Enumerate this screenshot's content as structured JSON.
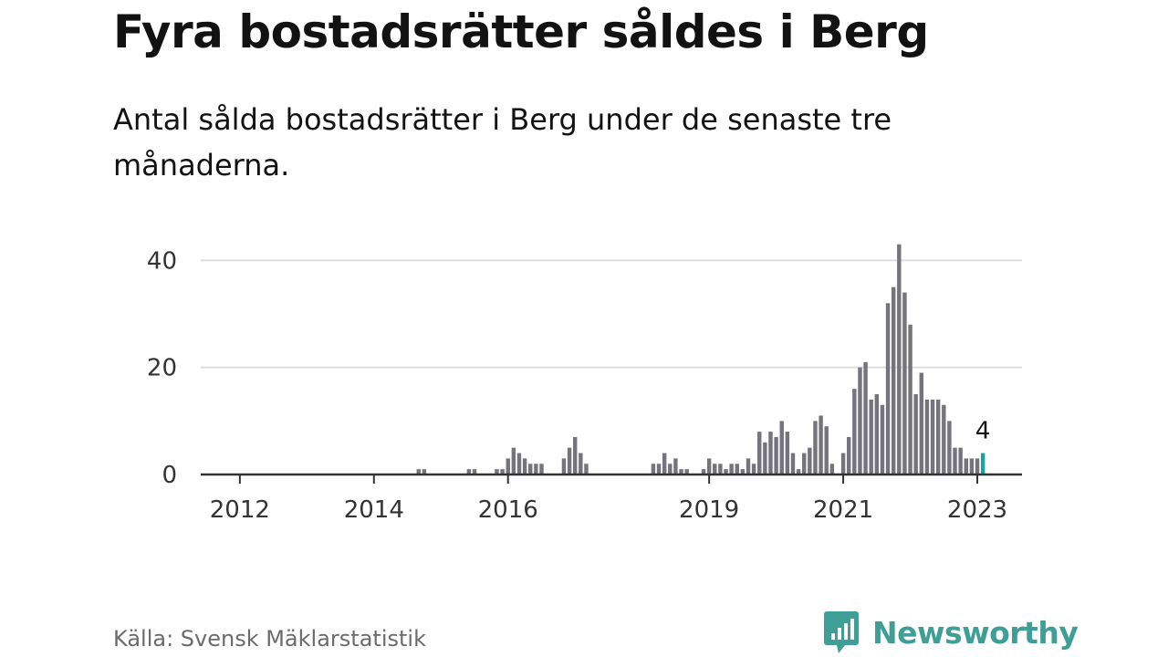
{
  "colors": {
    "bar": "#75737c",
    "highlight": "#19a3a1",
    "grid": "#dddddd",
    "axis": "#333333",
    "brand": "#3f9e96"
  },
  "source": "Källa: Svensk Mäklarstatistik",
  "brand": {
    "name": "Newsworthy"
  },
  "chart_data": {
    "type": "bar",
    "title": "Fyra bostadsrätter såldes i Berg",
    "subtitle": "Antal sålda bostadsrätter i Berg under de senaste tre månaderna.",
    "xlabel": "",
    "ylabel": "",
    "ylim": [
      0,
      45
    ],
    "xlim": [
      "2011-06",
      "2023-09"
    ],
    "yticks": [
      0,
      20,
      40
    ],
    "xticks": [
      {
        "date": "2012-01",
        "label": "2012"
      },
      {
        "date": "2014-01",
        "label": "2014"
      },
      {
        "date": "2016-01",
        "label": "2016"
      },
      {
        "date": "2019-01",
        "label": "2019"
      },
      {
        "date": "2021-01",
        "label": "2021"
      },
      {
        "date": "2023-01",
        "label": "2023"
      }
    ],
    "grid": true,
    "legend": "none",
    "highlight": {
      "date": "2023-02",
      "value": 4,
      "label": "4"
    },
    "points": [
      [
        "2014-09",
        1
      ],
      [
        "2014-10",
        1
      ],
      [
        "2015-06",
        1
      ],
      [
        "2015-07",
        1
      ],
      [
        "2015-11",
        1
      ],
      [
        "2015-12",
        1
      ],
      [
        "2016-01",
        3
      ],
      [
        "2016-02",
        5
      ],
      [
        "2016-03",
        4
      ],
      [
        "2016-04",
        3
      ],
      [
        "2016-05",
        2
      ],
      [
        "2016-06",
        2
      ],
      [
        "2016-07",
        2
      ],
      [
        "2016-11",
        3
      ],
      [
        "2016-12",
        5
      ],
      [
        "2017-01",
        7
      ],
      [
        "2017-02",
        4
      ],
      [
        "2017-03",
        2
      ],
      [
        "2018-03",
        2
      ],
      [
        "2018-04",
        2
      ],
      [
        "2018-05",
        4
      ],
      [
        "2018-06",
        2
      ],
      [
        "2018-07",
        3
      ],
      [
        "2018-08",
        1
      ],
      [
        "2018-09",
        1
      ],
      [
        "2018-12",
        1
      ],
      [
        "2019-01",
        3
      ],
      [
        "2019-02",
        2
      ],
      [
        "2019-03",
        2
      ],
      [
        "2019-04",
        1
      ],
      [
        "2019-05",
        2
      ],
      [
        "2019-06",
        2
      ],
      [
        "2019-07",
        1
      ],
      [
        "2019-08",
        3
      ],
      [
        "2019-09",
        2
      ],
      [
        "2019-10",
        8
      ],
      [
        "2019-11",
        6
      ],
      [
        "2019-12",
        8
      ],
      [
        "2020-01",
        7
      ],
      [
        "2020-02",
        10
      ],
      [
        "2020-03",
        8
      ],
      [
        "2020-04",
        4
      ],
      [
        "2020-05",
        1
      ],
      [
        "2020-06",
        4
      ],
      [
        "2020-07",
        5
      ],
      [
        "2020-08",
        10
      ],
      [
        "2020-09",
        11
      ],
      [
        "2020-10",
        9
      ],
      [
        "2020-11",
        2
      ],
      [
        "2021-01",
        4
      ],
      [
        "2021-02",
        7
      ],
      [
        "2021-03",
        16
      ],
      [
        "2021-04",
        20
      ],
      [
        "2021-05",
        21
      ],
      [
        "2021-06",
        14
      ],
      [
        "2021-07",
        15
      ],
      [
        "2021-08",
        13
      ],
      [
        "2021-09",
        32
      ],
      [
        "2021-10",
        35
      ],
      [
        "2021-11",
        43
      ],
      [
        "2021-12",
        34
      ],
      [
        "2022-01",
        28
      ],
      [
        "2022-02",
        15
      ],
      [
        "2022-03",
        19
      ],
      [
        "2022-04",
        14
      ],
      [
        "2022-05",
        14
      ],
      [
        "2022-06",
        14
      ],
      [
        "2022-07",
        13
      ],
      [
        "2022-08",
        10
      ],
      [
        "2022-09",
        5
      ],
      [
        "2022-10",
        5
      ],
      [
        "2022-11",
        3
      ],
      [
        "2022-12",
        3
      ],
      [
        "2023-01",
        3
      ],
      [
        "2023-02",
        4
      ]
    ]
  }
}
